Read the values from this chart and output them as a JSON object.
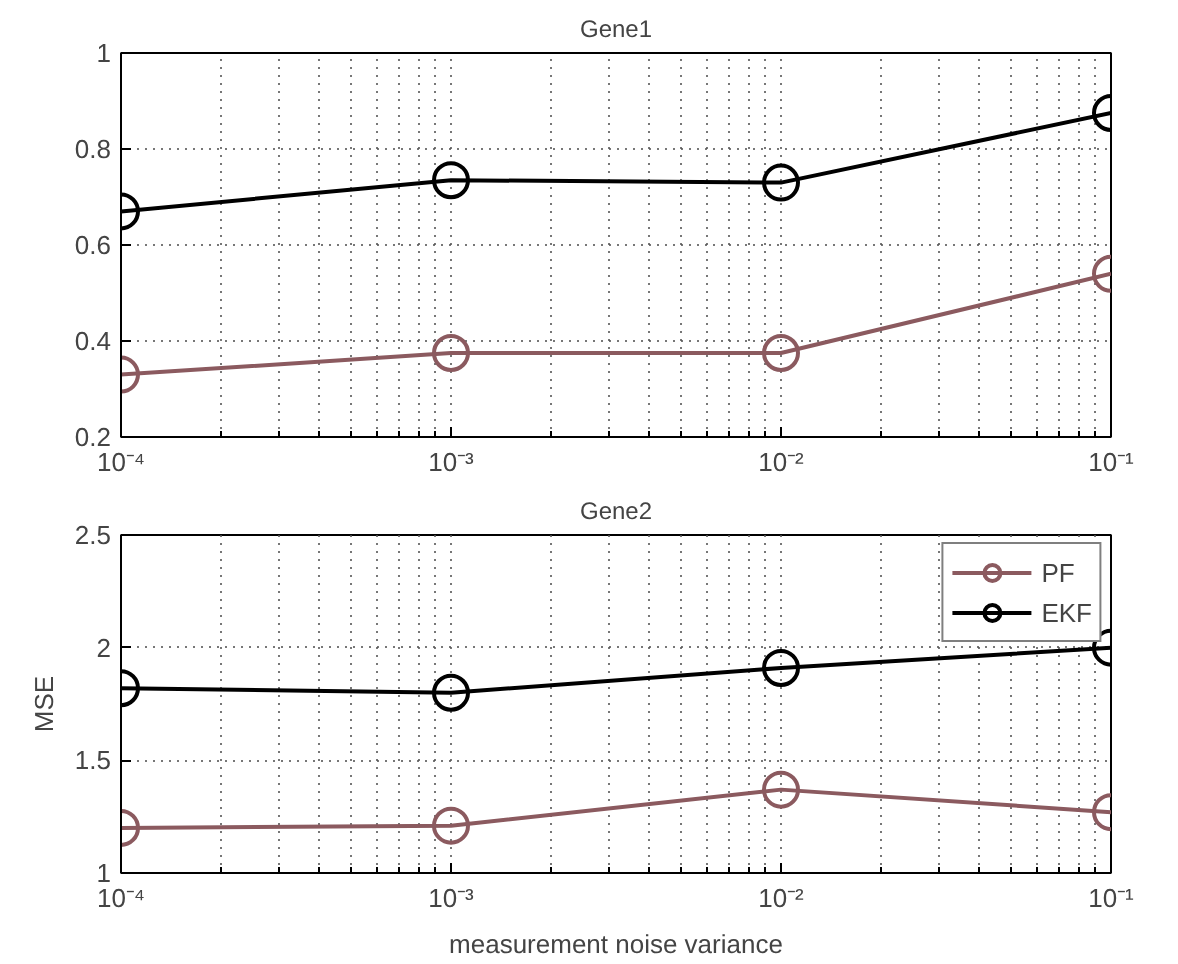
{
  "chart_data": [
    {
      "type": "line",
      "title": "Gene1",
      "x": [
        0.0001,
        0.001,
        0.01,
        0.1
      ],
      "log": "x",
      "xlim": [
        0.0001,
        0.1
      ],
      "xticks": [
        {
          "value": 0.0001,
          "label": "10⁻⁴"
        },
        {
          "value": 0.001,
          "label": "10⁻³"
        },
        {
          "value": 0.01,
          "label": "10⁻²"
        },
        {
          "value": 0.1,
          "label": "10⁻¹"
        }
      ],
      "ylim": [
        0.2,
        1
      ],
      "yticks": [
        0.2,
        0.4,
        0.6,
        0.8,
        1
      ],
      "grid": true,
      "legend": false,
      "marker": "circle",
      "line_style": "solid",
      "series": [
        {
          "color": "#8b5a5f",
          "values": [
            0.33,
            0.375,
            0.375,
            0.54
          ]
        },
        {
          "color": "#000000",
          "values": [
            0.67,
            0.735,
            0.73,
            0.875
          ]
        }
      ]
    },
    {
      "type": "line",
      "title": "Gene2",
      "xlabel": "measurement noise variance",
      "ylabel": "MSE",
      "x": [
        0.0001,
        0.001,
        0.01,
        0.1
      ],
      "log": "x",
      "xlim": [
        0.0001,
        0.1
      ],
      "xticks": [
        {
          "value": 0.0001,
          "label": "10⁻⁴"
        },
        {
          "value": 0.001,
          "label": "10⁻³"
        },
        {
          "value": 0.01,
          "label": "10⁻²"
        },
        {
          "value": 0.1,
          "label": "10⁻¹"
        }
      ],
      "ylim": [
        1,
        2.5
      ],
      "yticks": [
        1,
        1.5,
        2,
        2.5
      ],
      "grid": true,
      "legend": "top right",
      "marker": "circle",
      "line_style": "solid",
      "series": [
        {
          "name": "PF",
          "color": "#8b5a5f",
          "values": [
            1.2,
            1.21,
            1.37,
            1.27
          ]
        },
        {
          "name": "EKF",
          "color": "#000000",
          "values": [
            1.82,
            1.8,
            1.91,
            2.0
          ]
        }
      ]
    }
  ]
}
